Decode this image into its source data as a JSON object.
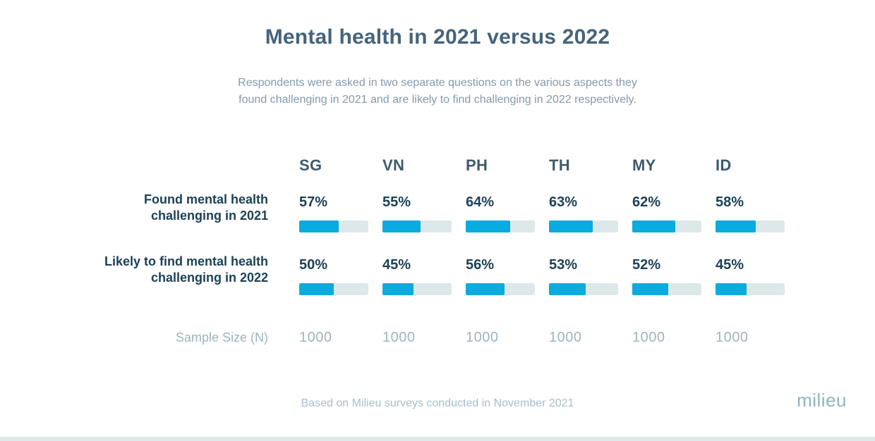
{
  "header": {
    "title": "Mental health in 2021 versus 2022",
    "subtitle_line1": "Respondents were asked in two separate questions on the various aspects they",
    "subtitle_line2": "found challenging in 2021 and are likely to find challenging in 2022 respectively."
  },
  "chart_data": {
    "type": "bar",
    "categories": [
      "SG",
      "VN",
      "PH",
      "TH",
      "MY",
      "ID"
    ],
    "series": [
      {
        "name": "Found mental health challenging in 2021",
        "values": [
          57,
          55,
          64,
          63,
          62,
          58
        ]
      },
      {
        "name": "Likely to find mental health challenging in 2022",
        "values": [
          50,
          45,
          56,
          53,
          52,
          45
        ]
      }
    ],
    "sample_sizes": [
      1000,
      1000,
      1000,
      1000,
      1000,
      1000
    ],
    "title": "Mental health in 2021 versus 2022",
    "value_format": "percent",
    "xlim": [
      0,
      100
    ],
    "orientation": "horizontal",
    "legend_position": "none",
    "grid": false
  },
  "table": {
    "columns": [
      "SG",
      "VN",
      "PH",
      "TH",
      "MY",
      "ID"
    ],
    "rows": [
      {
        "label_line1": "Found mental health",
        "label_line2": "challenging in 2021",
        "values": [
          "57%",
          "55%",
          "64%",
          "63%",
          "62%",
          "58%"
        ]
      },
      {
        "label_line1": "Likely to find mental health",
        "label_line2": "challenging in 2022",
        "values": [
          "50%",
          "45%",
          "56%",
          "53%",
          "52%",
          "45%"
        ]
      }
    ],
    "sample_row": {
      "label": "Sample Size (N)",
      "values": [
        "1000",
        "1000",
        "1000",
        "1000",
        "1000",
        "1000"
      ]
    }
  },
  "footer": {
    "note": "Based on Milieu surveys conducted in November 2021",
    "logo_text": "milieu"
  },
  "colors": {
    "bar_fill": "#0aabdf",
    "bar_track": "#dce8e9",
    "title_text": "#45647b",
    "subtitle_text": "#8399ab",
    "header_text": "#3e5a6d",
    "dark_text": "#1d4156",
    "muted_text": "#9cb4c2",
    "footer_text": "#a6becb",
    "bottom_strip": "#dfe9e9"
  }
}
